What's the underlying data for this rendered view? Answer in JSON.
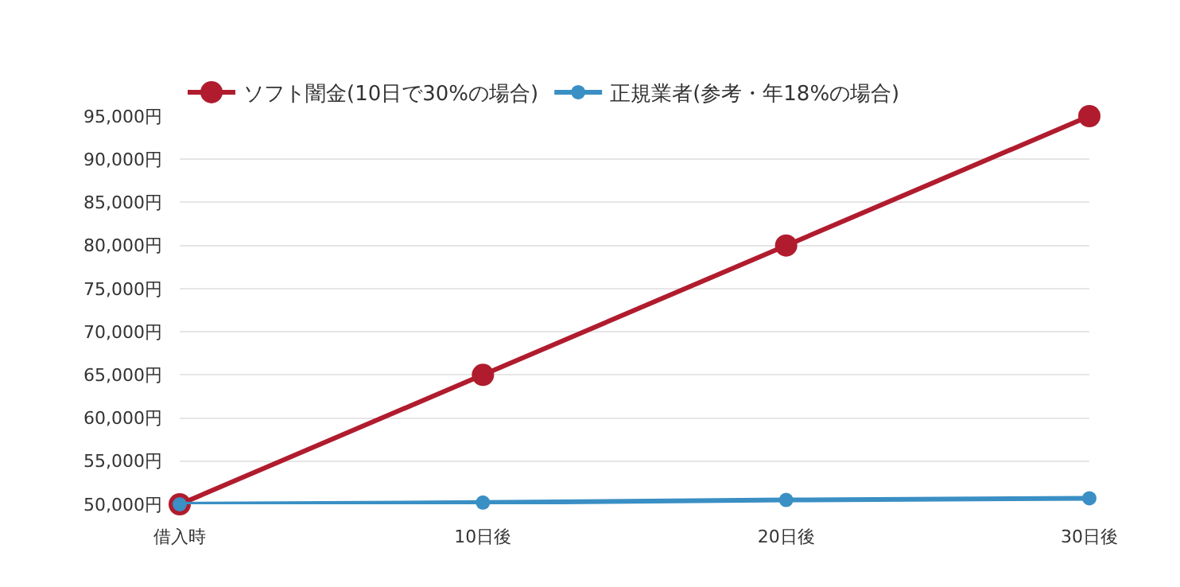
{
  "chart_data": {
    "type": "line",
    "categories": [
      "借入時",
      "10日後",
      "20日後",
      "30日後"
    ],
    "series": [
      {
        "name": "ソフト闇金(10日で30%の場合)",
        "color": "#b01c2e",
        "values": [
          50000,
          65000,
          80000,
          95000
        ]
      },
      {
        "name": "正規業者(参考・年18%の場合)",
        "color": "#3a8fc4",
        "values": [
          50000,
          50200,
          50500,
          50700
        ]
      }
    ],
    "ylim": [
      50000,
      95000
    ],
    "yticks": [
      {
        "value": 50000,
        "label": "50,000円"
      },
      {
        "value": 55000,
        "label": "55,000円"
      },
      {
        "value": 60000,
        "label": "60,000円"
      },
      {
        "value": 65000,
        "label": "65,000円"
      },
      {
        "value": 70000,
        "label": "70,000円"
      },
      {
        "value": 75000,
        "label": "75,000円"
      },
      {
        "value": 80000,
        "label": "80,000円"
      },
      {
        "value": 85000,
        "label": "85,000円"
      },
      {
        "value": 90000,
        "label": "90,000円"
      },
      {
        "value": 95000,
        "label": "95,000円"
      }
    ],
    "grid": "y",
    "legend": "top left",
    "marker": "circle",
    "line_style": "solid"
  }
}
